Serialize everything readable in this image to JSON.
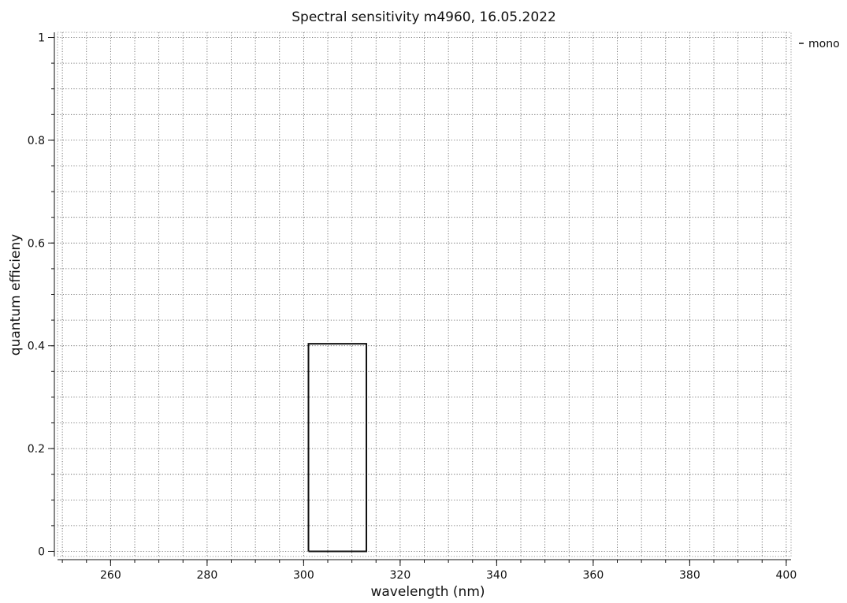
{
  "chart_data": {
    "type": "line",
    "title": "Spectral sensitivity m4960, 16.05.2022",
    "xlabel": "wavelength (nm)",
    "ylabel": "quantum efficieny",
    "xlim": [
      249,
      401
    ],
    "ylim": [
      -0.01,
      1.01
    ],
    "x_ticks": [
      260,
      280,
      300,
      320,
      340,
      360,
      380,
      400
    ],
    "x_tick_labels": [
      "260",
      "280",
      "300",
      "320",
      "340",
      "360",
      "380",
      "400"
    ],
    "x_minor_step": 5,
    "y_ticks": [
      0,
      0.2,
      0.4,
      0.6,
      0.8,
      1
    ],
    "y_tick_labels": [
      "0",
      "0.2",
      "0.4",
      "0.6",
      "0.8",
      "1"
    ],
    "y_minor_step": 0.05,
    "grid": true,
    "legend_position": "top-right outside",
    "series": [
      {
        "name": "mono",
        "color": "#111111",
        "x": [
          301,
          301,
          313,
          313,
          301
        ],
        "y": [
          0,
          0.404,
          0.404,
          0,
          0
        ]
      }
    ]
  }
}
